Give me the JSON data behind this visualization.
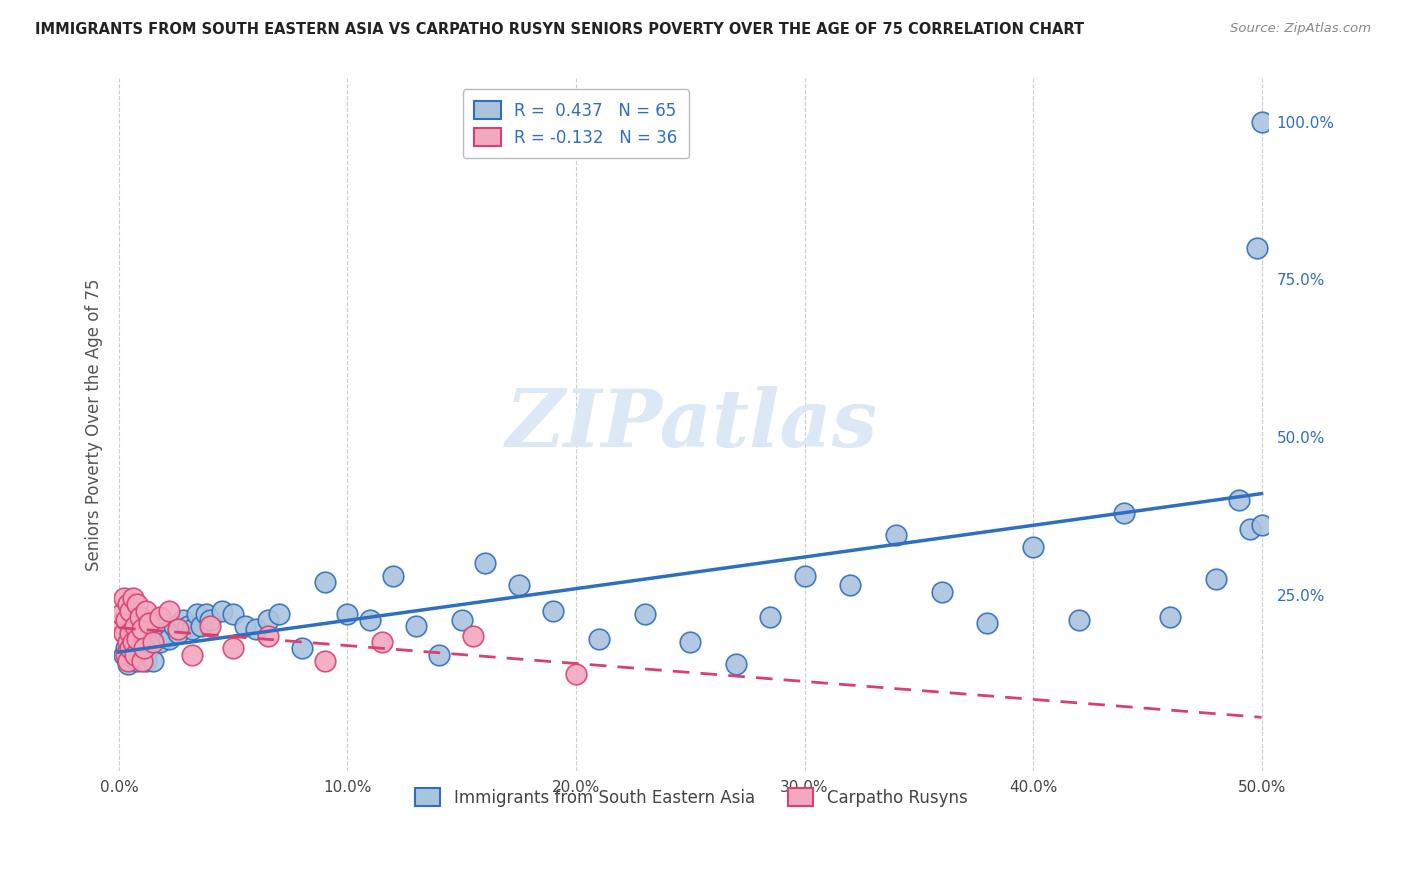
{
  "title": "IMMIGRANTS FROM SOUTH EASTERN ASIA VS CARPATHO RUSYN SENIORS POVERTY OVER THE AGE OF 75 CORRELATION CHART",
  "source": "Source: ZipAtlas.com",
  "ylabel": "Seniors Poverty Over the Age of 75",
  "legend_label_1": "Immigrants from South Eastern Asia",
  "legend_label_2": "Carpatho Rusyns",
  "R1": 0.437,
  "N1": 65,
  "R2": -0.132,
  "N2": 36,
  "xlim": [
    -0.002,
    0.503
  ],
  "ylim": [
    -0.03,
    1.07
  ],
  "xtick_labels": [
    "0.0%",
    "10.0%",
    "20.0%",
    "30.0%",
    "40.0%",
    "50.0%"
  ],
  "xtick_vals": [
    0.0,
    0.1,
    0.2,
    0.3,
    0.4,
    0.5
  ],
  "ytick_labels": [
    "25.0%",
    "50.0%",
    "75.0%",
    "100.0%"
  ],
  "ytick_vals": [
    0.25,
    0.5,
    0.75,
    1.0
  ],
  "color_blue": "#aac4de",
  "color_pink": "#f2a8be",
  "line_blue": "#2f6fbf",
  "line_pink": "#d94070",
  "bg_color": "#ffffff",
  "watermark": "ZIPatlas",
  "watermark_color": "#dce8f5",
  "blue_x": [
    0.002,
    0.003,
    0.004,
    0.005,
    0.006,
    0.007,
    0.008,
    0.009,
    0.01,
    0.011,
    0.012,
    0.013,
    0.014,
    0.015,
    0.016,
    0.017,
    0.018,
    0.02,
    0.022,
    0.024,
    0.026,
    0.028,
    0.03,
    0.032,
    0.034,
    0.036,
    0.038,
    0.04,
    0.045,
    0.05,
    0.055,
    0.06,
    0.065,
    0.07,
    0.08,
    0.09,
    0.1,
    0.11,
    0.12,
    0.13,
    0.14,
    0.15,
    0.16,
    0.175,
    0.19,
    0.21,
    0.23,
    0.25,
    0.27,
    0.285,
    0.3,
    0.32,
    0.34,
    0.36,
    0.38,
    0.4,
    0.42,
    0.44,
    0.46,
    0.48,
    0.49,
    0.495,
    0.498,
    0.5,
    0.5
  ],
  "blue_y": [
    0.155,
    0.165,
    0.14,
    0.155,
    0.17,
    0.15,
    0.145,
    0.16,
    0.175,
    0.15,
    0.145,
    0.165,
    0.17,
    0.145,
    0.2,
    0.18,
    0.175,
    0.19,
    0.18,
    0.2,
    0.19,
    0.21,
    0.2,
    0.195,
    0.22,
    0.2,
    0.22,
    0.21,
    0.225,
    0.22,
    0.2,
    0.195,
    0.21,
    0.22,
    0.165,
    0.27,
    0.22,
    0.21,
    0.28,
    0.2,
    0.155,
    0.21,
    0.3,
    0.265,
    0.225,
    0.18,
    0.22,
    0.175,
    0.14,
    0.215,
    0.28,
    0.265,
    0.345,
    0.255,
    0.205,
    0.325,
    0.21,
    0.38,
    0.215,
    0.275,
    0.4,
    0.355,
    0.8,
    0.36,
    1.0
  ],
  "pink_x": [
    0.001,
    0.001,
    0.002,
    0.002,
    0.003,
    0.003,
    0.004,
    0.004,
    0.004,
    0.005,
    0.005,
    0.005,
    0.006,
    0.006,
    0.007,
    0.007,
    0.008,
    0.008,
    0.009,
    0.01,
    0.01,
    0.011,
    0.012,
    0.013,
    0.015,
    0.018,
    0.022,
    0.026,
    0.032,
    0.04,
    0.05,
    0.065,
    0.09,
    0.115,
    0.155,
    0.2
  ],
  "pink_y": [
    0.205,
    0.22,
    0.19,
    0.245,
    0.21,
    0.155,
    0.175,
    0.235,
    0.145,
    0.19,
    0.225,
    0.165,
    0.175,
    0.245,
    0.2,
    0.155,
    0.235,
    0.18,
    0.215,
    0.145,
    0.195,
    0.165,
    0.225,
    0.205,
    0.175,
    0.215,
    0.225,
    0.195,
    0.155,
    0.2,
    0.165,
    0.185,
    0.145,
    0.175,
    0.185,
    0.125
  ]
}
